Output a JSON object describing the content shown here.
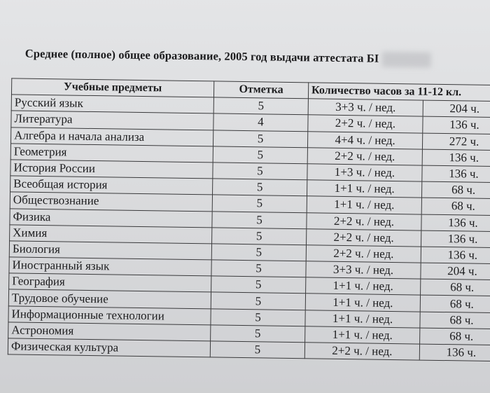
{
  "title": "Среднее (полное) общее образование, 2005 год выдачи аттестата БI",
  "table": {
    "headers": [
      "Учебные предметы",
      "Отметка",
      "Количество часов за 11-12 кл."
    ],
    "rows": [
      {
        "subject": "Русский язык",
        "grade": "5",
        "weekly": "3+3 ч. / нед.",
        "total": "204 ч."
      },
      {
        "subject": "Литература",
        "grade": "4",
        "weekly": "2+2 ч. / нед.",
        "total": "136 ч."
      },
      {
        "subject": "Алгебра и начала анализа",
        "grade": "5",
        "weekly": "4+4 ч. / нед.",
        "total": "272 ч."
      },
      {
        "subject": "Геометрия",
        "grade": "5",
        "weekly": "2+2 ч. / нед.",
        "total": "136 ч."
      },
      {
        "subject": "История России",
        "grade": "5",
        "weekly": "1+3 ч. / нед.",
        "total": "136 ч."
      },
      {
        "subject": "Всеобщая история",
        "grade": "5",
        "weekly": "1+1 ч. / нед.",
        "total": "68 ч."
      },
      {
        "subject": "Обществознание",
        "grade": "5",
        "weekly": "1+1 ч. / нед.",
        "total": "68 ч."
      },
      {
        "subject": "Физика",
        "grade": "5",
        "weekly": "2+2 ч. / нед.",
        "total": "136 ч."
      },
      {
        "subject": "Химия",
        "grade": "5",
        "weekly": "2+2 ч. / нед.",
        "total": "136 ч."
      },
      {
        "subject": "Биология",
        "grade": "5",
        "weekly": "2+2 ч. / нед.",
        "total": "136 ч."
      },
      {
        "subject": "Иностранный язык",
        "grade": "5",
        "weekly": "3+3 ч. / нед.",
        "total": "204 ч."
      },
      {
        "subject": "География",
        "grade": "5",
        "weekly": "1+1 ч. / нед.",
        "total": "68 ч."
      },
      {
        "subject": "Трудовое обучение",
        "grade": "5",
        "weekly": "1+1 ч. / нед.",
        "total": "68 ч."
      },
      {
        "subject": "Информационные технологии",
        "grade": "5",
        "weekly": "1+1 ч. / нед.",
        "total": "68 ч."
      },
      {
        "subject": "Астрономия",
        "grade": "5",
        "weekly": "1+1 ч. / нед.",
        "total": "68 ч."
      },
      {
        "subject": "Физическая культура",
        "grade": "5",
        "weekly": "2+2 ч. / нед.",
        "total": "136 ч."
      }
    ]
  }
}
